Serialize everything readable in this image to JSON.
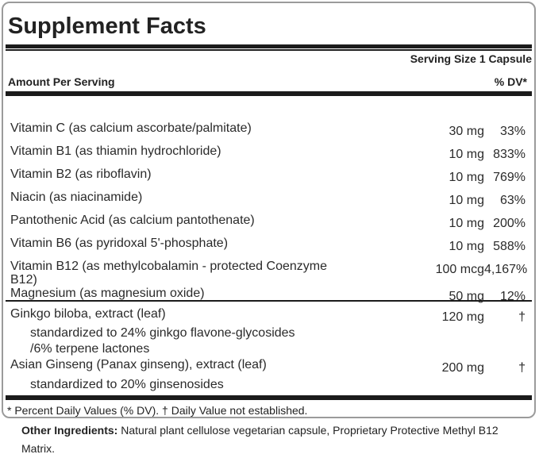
{
  "title": "Supplement Facts",
  "serving_size": "Serving Size 1 Capsule",
  "columns": {
    "amount_header": "Amount Per Serving",
    "dv_header": "% DV*"
  },
  "nutrients": [
    {
      "name": "Vitamin C (as calcium ascorbate/palmitate)",
      "amount": "30 mg",
      "dv": "33%"
    },
    {
      "name": "Vitamin B1 (as thiamin hydrochloride)",
      "amount": "10 mg",
      "dv": "833%"
    },
    {
      "name": "Vitamin B2 (as riboflavin)",
      "amount": "10 mg",
      "dv": "769%"
    },
    {
      "name": "Niacin (as niacinamide)",
      "amount": "10 mg",
      "dv": "63%"
    },
    {
      "name": "Pantothenic Acid (as calcium pantothenate)",
      "amount": "10 mg",
      "dv": "200%"
    },
    {
      "name": "Vitamin B6 (as pyridoxal 5'-phosphate)",
      "amount": "10 mg",
      "dv": "588%"
    },
    {
      "name": "Vitamin B12 (as methylcobalamin - protected Coenzyme B12)",
      "amount": "100 mcg",
      "dv": "4,167%"
    },
    {
      "name": "Magnesium (as magnesium oxide)",
      "amount": "50 mg",
      "dv": "12%"
    }
  ],
  "botanicals": [
    {
      "name": "Ginkgo biloba, extract (leaf)",
      "amount": "120 mg",
      "dv": "†",
      "sub_lines": [
        "standardized to 24% ginkgo flavone-glycosides",
        "/6% terpene lactones"
      ]
    },
    {
      "name": "Asian Ginseng (Panax ginseng), extract (leaf)",
      "amount": "200 mg",
      "dv": "†",
      "sub_lines": [
        "standardized to 20% ginsenosides"
      ]
    }
  ],
  "footnote": "* Percent Daily Values (% DV). † Daily Value not established.",
  "other_ingredients": {
    "label": "Other Ingredients:",
    "text": " Natural plant cellulose vegetarian capsule, Proprietary Protective Methyl B12 Matrix."
  },
  "colors": {
    "rule": "#1b1b1b",
    "text": "#2a2a2a",
    "box_border": "#9b9b9b",
    "background": "#ffffff"
  }
}
